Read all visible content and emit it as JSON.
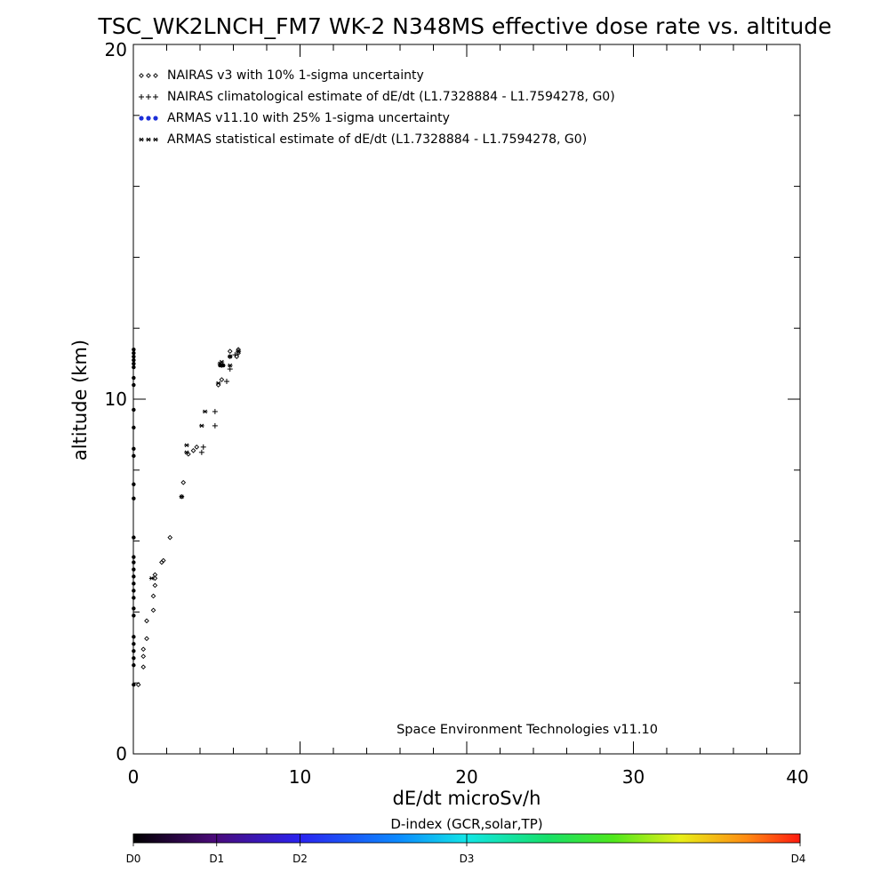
{
  "chart_data": {
    "type": "scatter",
    "title": "TSC_WK2LNCH_FM7 WK-2 N348MS effective dose rate vs. altitude",
    "xlabel": "dE/dt microSv/h",
    "ylabel": "altitude (km)",
    "xlim": [
      0,
      40
    ],
    "ylim": [
      0,
      20
    ],
    "x_ticks": [
      "0",
      "10",
      "20",
      "30",
      "40"
    ],
    "y_ticks": [
      "0",
      "10",
      "20"
    ],
    "grid": false,
    "legend_position": "top-left",
    "legend": [
      {
        "marker": "diamond",
        "label": "NAIRAS v3 with 10% 1-sigma uncertainty"
      },
      {
        "marker": "plus",
        "label": "NAIRAS climatological estimate of dE/dt (L1.7328884 - L1.7594278, G0)"
      },
      {
        "marker": "dot",
        "label": "ARMAS v11.10 with 25% 1-sigma uncertainty"
      },
      {
        "marker": "asterisk",
        "label": "ARMAS statistical estimate of dE/dt (L1.7328884 - L1.7594278, G0)"
      }
    ],
    "annotation": "Space Environment Technologies v11.10",
    "colorbar": {
      "title": "D-index (GCR,solar,TP)",
      "labels": [
        "D0",
        "D1",
        "D2",
        "D3",
        "D4"
      ],
      "label_positions": [
        0,
        0.125,
        0.25,
        0.5,
        1.0
      ]
    },
    "series": [
      {
        "name": "NAIRAS v3 with 10% 1-sigma uncertainty",
        "marker": "diamond",
        "points": [
          [
            0.3,
            1.95
          ],
          [
            0.6,
            2.45
          ],
          [
            0.6,
            2.75
          ],
          [
            0.6,
            2.95
          ],
          [
            0.8,
            3.25
          ],
          [
            0.8,
            3.75
          ],
          [
            1.2,
            4.05
          ],
          [
            1.2,
            4.45
          ],
          [
            1.3,
            4.75
          ],
          [
            1.3,
            4.95
          ],
          [
            1.3,
            5.05
          ],
          [
            1.7,
            5.4
          ],
          [
            1.8,
            5.45
          ],
          [
            2.2,
            6.1
          ],
          [
            2.9,
            7.25
          ],
          [
            3.0,
            7.65
          ],
          [
            3.3,
            8.45
          ],
          [
            3.6,
            8.55
          ],
          [
            3.8,
            8.65
          ],
          [
            5.1,
            10.4
          ],
          [
            5.3,
            10.55
          ],
          [
            5.3,
            10.95
          ],
          [
            5.8,
            11.2
          ],
          [
            5.8,
            11.35
          ],
          [
            6.2,
            11.2
          ],
          [
            6.3,
            11.3
          ],
          [
            6.3,
            11.4
          ]
        ]
      },
      {
        "name": "NAIRAS climatological estimate of dE/dt (L1.7328884 - L1.7594278, G0)",
        "marker": "plus",
        "points": [
          [
            4.1,
            8.5
          ],
          [
            4.2,
            8.65
          ],
          [
            4.9,
            9.25
          ],
          [
            4.9,
            9.65
          ],
          [
            5.6,
            10.5
          ],
          [
            5.8,
            10.85
          ],
          [
            6.1,
            11.25
          ],
          [
            6.3,
            11.35
          ]
        ]
      },
      {
        "name": "ARMAS v11.10 with 25% 1-sigma uncertainty",
        "marker": "dot",
        "points": [
          [
            0.02,
            1.95
          ],
          [
            0.02,
            2.5
          ],
          [
            0.02,
            2.7
          ],
          [
            0.02,
            2.9
          ],
          [
            0.02,
            3.1
          ],
          [
            0.02,
            3.3
          ],
          [
            0.02,
            3.9
          ],
          [
            0.02,
            4.1
          ],
          [
            0.02,
            4.4
          ],
          [
            0.02,
            4.6
          ],
          [
            0.02,
            4.8
          ],
          [
            0.02,
            5.0
          ],
          [
            0.02,
            5.2
          ],
          [
            0.02,
            5.4
          ],
          [
            0.02,
            5.55
          ],
          [
            0.02,
            6.1
          ],
          [
            0.02,
            7.2
          ],
          [
            0.02,
            7.6
          ],
          [
            0.02,
            8.4
          ],
          [
            0.02,
            8.6
          ],
          [
            0.02,
            9.2
          ],
          [
            0.02,
            9.7
          ],
          [
            0.02,
            10.4
          ],
          [
            0.02,
            10.6
          ],
          [
            0.02,
            10.9
          ],
          [
            0.02,
            11.0
          ],
          [
            0.02,
            11.1
          ],
          [
            0.02,
            11.2
          ],
          [
            0.02,
            11.3
          ],
          [
            0.02,
            11.4
          ],
          [
            5.2,
            10.95
          ],
          [
            5.4,
            10.95
          ]
        ]
      },
      {
        "name": "ARMAS statistical estimate of dE/dt (L1.7328884 - L1.7594278, G0)",
        "marker": "asterisk",
        "points": [
          [
            1.1,
            4.95
          ],
          [
            2.9,
            7.25
          ],
          [
            3.2,
            8.5
          ],
          [
            3.2,
            8.7
          ],
          [
            4.1,
            9.25
          ],
          [
            4.3,
            9.65
          ],
          [
            5.1,
            10.45
          ],
          [
            5.2,
            11.0
          ],
          [
            5.3,
            11.05
          ],
          [
            5.8,
            10.95
          ],
          [
            5.8,
            11.2
          ],
          [
            6.3,
            11.35
          ]
        ]
      }
    ]
  }
}
